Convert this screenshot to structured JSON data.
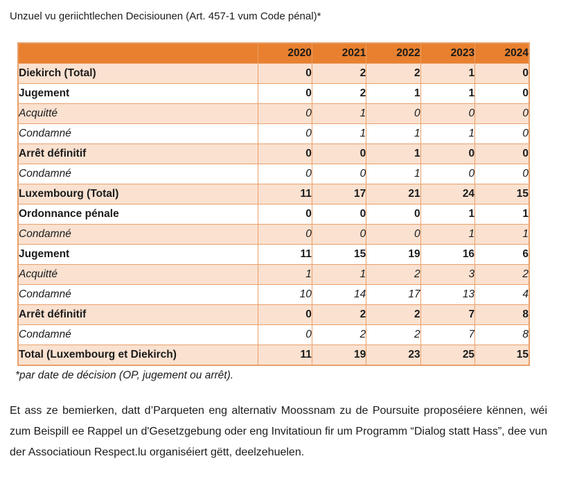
{
  "title": "Unzuel vu geriichtlechen Decisiounen (Art. 457-1 vum Code pénal)*",
  "table": {
    "years": [
      "2020",
      "2021",
      "2022",
      "2023",
      "2024"
    ],
    "rows": [
      {
        "label": "Diekirch (Total)",
        "emphasis": "bold",
        "indent": 0,
        "values": [
          "0",
          "2",
          "2",
          "1",
          "0"
        ]
      },
      {
        "label": "Jugement",
        "emphasis": "bold",
        "indent": 1,
        "values": [
          "0",
          "2",
          "1",
          "1",
          "0"
        ]
      },
      {
        "label": "Acquitté",
        "emphasis": "italic",
        "indent": 2,
        "values": [
          "0",
          "1",
          "0",
          "0",
          "0"
        ]
      },
      {
        "label": "Condamné",
        "emphasis": "italic",
        "indent": 2,
        "values": [
          "0",
          "1",
          "1",
          "1",
          "0"
        ]
      },
      {
        "label": "Arrêt définitif",
        "emphasis": "bold",
        "indent": 1,
        "values": [
          "0",
          "0",
          "1",
          "0",
          "0"
        ]
      },
      {
        "label": "Condamné",
        "emphasis": "italic",
        "indent": 2,
        "values": [
          "0",
          "0",
          "1",
          "0",
          "0"
        ]
      },
      {
        "label": "Luxembourg (Total)",
        "emphasis": "bold",
        "indent": 0,
        "values": [
          "11",
          "17",
          "21",
          "24",
          "15"
        ]
      },
      {
        "label": "Ordonnance pénale",
        "emphasis": "bold",
        "indent": 1,
        "values": [
          "0",
          "0",
          "0",
          "1",
          "1"
        ]
      },
      {
        "label": "Condamné",
        "emphasis": "italic",
        "indent": 2,
        "values": [
          "0",
          "0",
          "0",
          "1",
          "1"
        ]
      },
      {
        "label": "Jugement",
        "emphasis": "bold",
        "indent": 1,
        "values": [
          "11",
          "15",
          "19",
          "16",
          "6"
        ]
      },
      {
        "label": "Acquitté",
        "emphasis": "italic",
        "indent": 2,
        "values": [
          "1",
          "1",
          "2",
          "3",
          "2"
        ]
      },
      {
        "label": "Condamné",
        "emphasis": "italic",
        "indent": 2,
        "values": [
          "10",
          "14",
          "17",
          "13",
          "4"
        ]
      },
      {
        "label": "Arrêt définitif",
        "emphasis": "bold",
        "indent": 1,
        "values": [
          "0",
          "2",
          "2",
          "7",
          "8"
        ]
      },
      {
        "label": "Condamné",
        "emphasis": "italic",
        "indent": 2,
        "values": [
          "0",
          "2",
          "2",
          "7",
          "8"
        ]
      },
      {
        "label": "Total (Luxembourg et Diekirch)",
        "emphasis": "bold",
        "indent": 0,
        "values": [
          "11",
          "19",
          "23",
          "25",
          "15"
        ]
      }
    ]
  },
  "footnote": "*par date de décision (OP, jugement ou arrêt).",
  "paragraph": "Et ass ze bemierken, datt d’Parqueten eng alternativ Moossnam zu de Poursuite proposéiere kënnen, wéi zum Beispill ee Rappel un d'Gesetzgebung oder eng Invitatioun fir um Programm “Dialog statt Hass”, dee vun der Associatioun Respect.lu organiséiert gëtt, deelzehuelen.",
  "colors": {
    "header_bg": "#E8802F",
    "band_bg": "#FAE1D0",
    "border": "#E9A06A",
    "text": "#1B1B1B"
  }
}
